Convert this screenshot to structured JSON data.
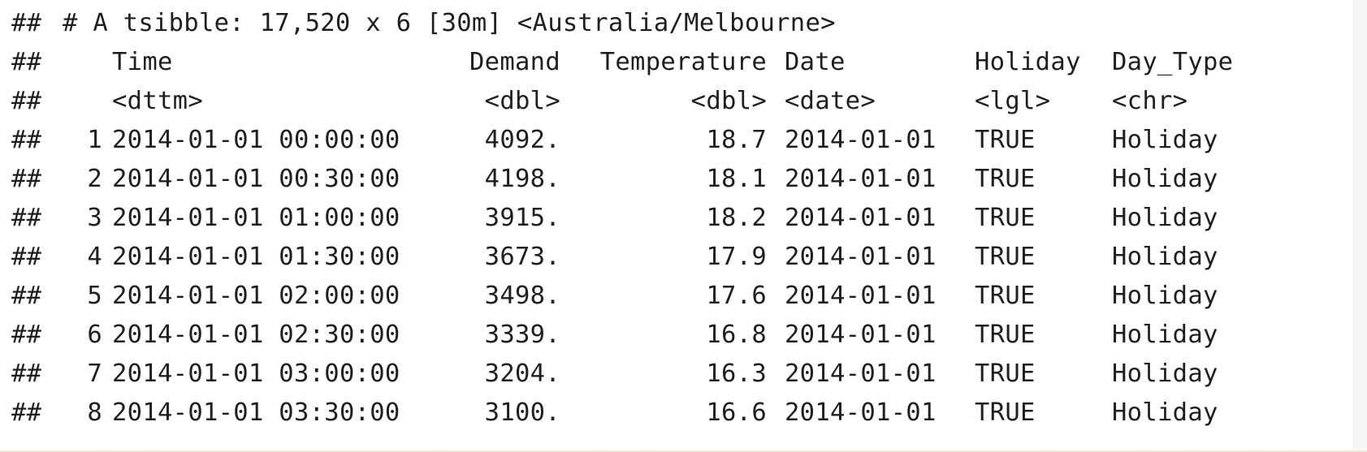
{
  "console": {
    "prompt": "##",
    "header": "# A tsibble: 17,520 x 6 [30m] <Australia/Melbourne>",
    "columns": [
      {
        "name": "Time",
        "type": "<dttm>"
      },
      {
        "name": "Demand",
        "type": "<dbl>"
      },
      {
        "name": "Temperature",
        "type": "<dbl>"
      },
      {
        "name": "Date",
        "type": "<date>"
      },
      {
        "name": "Holiday",
        "type": "<lgl>"
      },
      {
        "name": "Day_Type",
        "type": "<chr>"
      }
    ],
    "rows": [
      {
        "idx": "1",
        "time": "2014-01-01 00:00:00",
        "demand": "4092.",
        "temp": "18.7",
        "date": "2014-01-01",
        "holiday": "TRUE",
        "day_type": "Holiday"
      },
      {
        "idx": "2",
        "time": "2014-01-01 00:30:00",
        "demand": "4198.",
        "temp": "18.1",
        "date": "2014-01-01",
        "holiday": "TRUE",
        "day_type": "Holiday"
      },
      {
        "idx": "3",
        "time": "2014-01-01 01:00:00",
        "demand": "3915.",
        "temp": "18.2",
        "date": "2014-01-01",
        "holiday": "TRUE",
        "day_type": "Holiday"
      },
      {
        "idx": "4",
        "time": "2014-01-01 01:30:00",
        "demand": "3673.",
        "temp": "17.9",
        "date": "2014-01-01",
        "holiday": "TRUE",
        "day_type": "Holiday"
      },
      {
        "idx": "5",
        "time": "2014-01-01 02:00:00",
        "demand": "3498.",
        "temp": "17.6",
        "date": "2014-01-01",
        "holiday": "TRUE",
        "day_type": "Holiday"
      },
      {
        "idx": "6",
        "time": "2014-01-01 02:30:00",
        "demand": "3339.",
        "temp": "16.8",
        "date": "2014-01-01",
        "holiday": "TRUE",
        "day_type": "Holiday"
      },
      {
        "idx": "7",
        "time": "2014-01-01 03:00:00",
        "demand": "3204.",
        "temp": "16.3",
        "date": "2014-01-01",
        "holiday": "TRUE",
        "day_type": "Holiday"
      },
      {
        "idx": "8",
        "time": "2014-01-01 03:30:00",
        "demand": "3100.",
        "temp": "16.6",
        "date": "2014-01-01",
        "holiday": "TRUE",
        "day_type": "Holiday"
      }
    ]
  }
}
